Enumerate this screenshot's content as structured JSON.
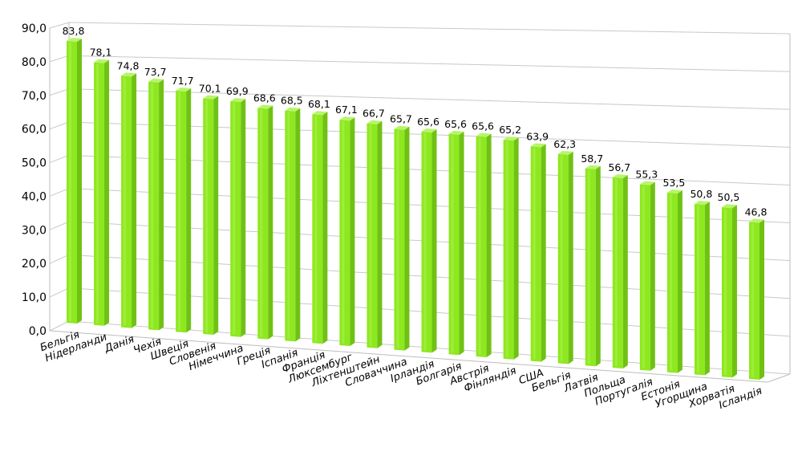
{
  "chart_data": {
    "type": "bar",
    "title": "",
    "xlabel": "",
    "ylabel": "",
    "ylim": [
      0,
      90
    ],
    "yticks": [
      "0,0",
      "10,0",
      "20,0",
      "30,0",
      "40,0",
      "50,0",
      "60,0",
      "70,0",
      "80,0",
      "90,0"
    ],
    "grid": true,
    "bar_color": "#8ee81f",
    "categories": [
      "Бельгія",
      "Нідерланди",
      "Данія",
      "Чехія",
      "Швеція",
      "Словенія",
      "Німеччина",
      "Греція",
      "Іспанія",
      "Франція",
      "Люксембург",
      "Ліхтенштейн",
      "Словаччина",
      "Ірландія",
      "Болгарія",
      "Австрія",
      "Фінляндія",
      "США",
      "Бельгія",
      "Латвія",
      "Польща",
      "Португалія",
      "Естонія",
      "Угорщина",
      "Хорватія",
      "Ісландія"
    ],
    "values": [
      83.8,
      78.1,
      74.8,
      73.7,
      71.7,
      70.1,
      69.9,
      68.6,
      68.5,
      68.1,
      67.1,
      66.7,
      65.7,
      65.6,
      65.6,
      65.6,
      65.2,
      63.9,
      62.3,
      58.7,
      56.7,
      55.3,
      53.5,
      50.8,
      50.5,
      46.8
    ],
    "value_labels": [
      "83,8",
      "78,1",
      "74,8",
      "73,7",
      "71,7",
      "70,1",
      "69,9",
      "68,6",
      "68,5",
      "68,1",
      "67,1",
      "66,7",
      "65,7",
      "65,6",
      "65,6",
      "65,6",
      "65,2",
      "63,9",
      "62,3",
      "58,7",
      "56,7",
      "55,3",
      "53,5",
      "50,8",
      "50,5",
      "46,8"
    ]
  }
}
